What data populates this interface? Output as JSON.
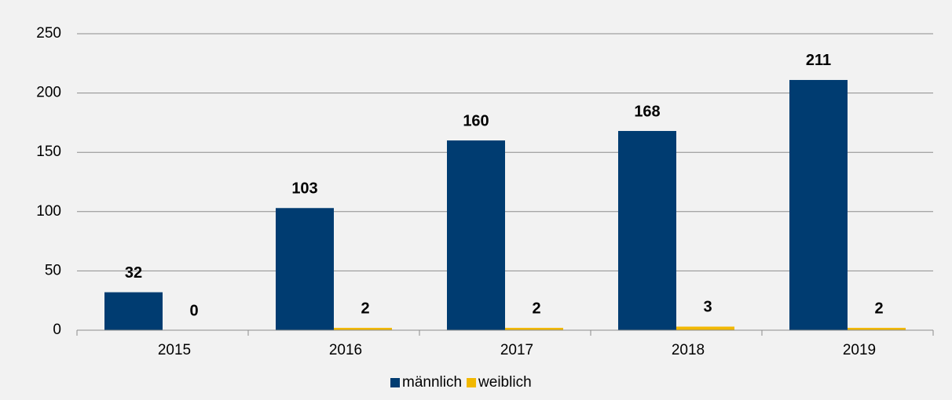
{
  "chart_data": {
    "type": "bar",
    "categories": [
      "2015",
      "2016",
      "2017",
      "2018",
      "2019"
    ],
    "series": [
      {
        "name": "männlich",
        "color": "#003c71",
        "values": [
          32,
          103,
          160,
          168,
          211
        ]
      },
      {
        "name": "weiblich",
        "color": "#f2b800",
        "values": [
          0,
          2,
          2,
          3,
          2
        ]
      }
    ],
    "ylim": [
      0,
      250
    ],
    "yticks": [
      0,
      50,
      100,
      150,
      200,
      250
    ],
    "grid": true,
    "legend": "bottom"
  }
}
